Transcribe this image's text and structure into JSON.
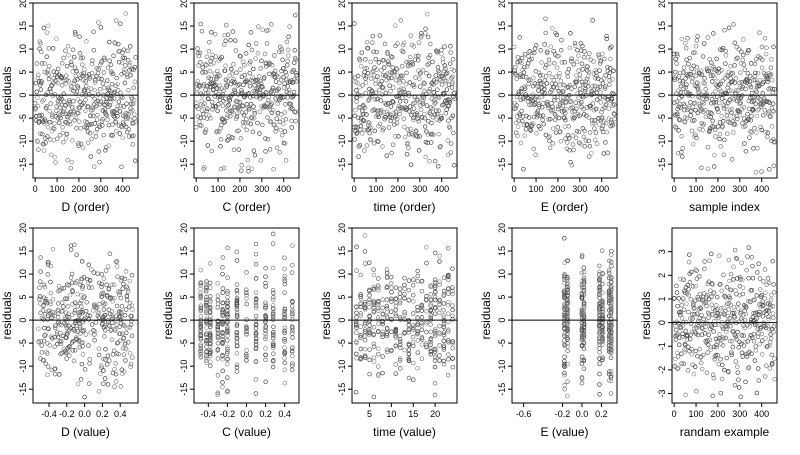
{
  "chart_data": [
    {
      "type": "scatter",
      "panel": "D-order",
      "xlabel": "D (order)",
      "ylabel": "residuals",
      "xlim": [
        -10,
        470
      ],
      "ylim": [
        -18,
        20
      ],
      "xticks": [
        0,
        100,
        200,
        300,
        400
      ],
      "yticks": [
        -15,
        -10,
        -5,
        0,
        5,
        10,
        15,
        20
      ],
      "refline": 0,
      "xkind": "order",
      "n": 460,
      "seed": 11
    },
    {
      "type": "scatter",
      "panel": "C-order",
      "xlabel": "C (order)",
      "ylabel": "residuals",
      "xlim": [
        -10,
        470
      ],
      "ylim": [
        -18,
        20
      ],
      "xticks": [
        0,
        100,
        200,
        300,
        400
      ],
      "yticks": [
        -15,
        -10,
        -5,
        0,
        5,
        10,
        15,
        20
      ],
      "refline": 0,
      "xkind": "order",
      "n": 460,
      "seed": 23
    },
    {
      "type": "scatter",
      "panel": "time-order",
      "xlabel": "time (order)",
      "ylabel": "residuals",
      "xlim": [
        -10,
        470
      ],
      "ylim": [
        -18,
        20
      ],
      "xticks": [
        0,
        100,
        200,
        300,
        400
      ],
      "yticks": [
        -15,
        -10,
        -5,
        0,
        5,
        10,
        15,
        20
      ],
      "refline": 0,
      "xkind": "order",
      "n": 460,
      "seed": 37
    },
    {
      "type": "scatter",
      "panel": "E-order",
      "xlabel": "E (order)",
      "ylabel": "residuals",
      "xlim": [
        -10,
        470
      ],
      "ylim": [
        -18,
        20
      ],
      "xticks": [
        0,
        100,
        200,
        300,
        400
      ],
      "yticks": [
        -15,
        -10,
        -5,
        0,
        5,
        10,
        15,
        20
      ],
      "refline": 0,
      "xkind": "order",
      "n": 460,
      "seed": 41
    },
    {
      "type": "scatter",
      "panel": "sample-index",
      "xlabel": "sample index",
      "ylabel": "residuals",
      "xlim": [
        -10,
        470
      ],
      "ylim": [
        -18,
        20
      ],
      "xticks": [
        0,
        100,
        200,
        300,
        400
      ],
      "yticks": [
        -15,
        -10,
        -5,
        0,
        5,
        10,
        15,
        20
      ],
      "refline": 0,
      "xkind": "order",
      "n": 460,
      "seed": 53
    },
    {
      "type": "scatter",
      "panel": "D-value",
      "xlabel": "D (value)",
      "ylabel": "residuals",
      "xlim": [
        -0.58,
        0.6
      ],
      "ylim": [
        -18,
        20
      ],
      "xticks": [
        -0.4,
        -0.2,
        0.0,
        0.2,
        0.4
      ],
      "xtick_labels": [
        "-0.4",
        "-0.2",
        "0.0",
        "0.2",
        "0.4"
      ],
      "yticks": [
        -15,
        -10,
        -5,
        0,
        5,
        10,
        15,
        20
      ],
      "refline": 0,
      "xkind": "continuous",
      "n": 420,
      "seed": 61
    },
    {
      "type": "scatter",
      "panel": "C-value",
      "xlabel": "C (value)",
      "ylabel": "residuals",
      "xlim": [
        -0.55,
        0.55
      ],
      "ylim": [
        -18,
        20
      ],
      "xticks": [
        -0.4,
        -0.2,
        0.0,
        0.2,
        0.4
      ],
      "xtick_labels": [
        "-0.4",
        "-0.2",
        "0.0",
        "0.2",
        "0.4"
      ],
      "yticks": [
        -15,
        -10,
        -5,
        0,
        5,
        10,
        15,
        20
      ],
      "refline": 0,
      "xkind": "discrete",
      "levels": [
        -0.48,
        -0.42,
        -0.38,
        -0.3,
        -0.25,
        -0.2,
        -0.1,
        0.0,
        0.1,
        0.2,
        0.28,
        0.4,
        0.48
      ],
      "n": 420,
      "seed": 73
    },
    {
      "type": "scatter",
      "panel": "time-value",
      "xlabel": "time (value)",
      "ylabel": "residuals",
      "xlim": [
        1,
        25
      ],
      "ylim": [
        -18,
        20
      ],
      "xticks": [
        5,
        10,
        15,
        20
      ],
      "xtick_labels": [
        "5",
        "10",
        "15",
        "20"
      ],
      "yticks": [
        -15,
        -10,
        -5,
        0,
        5,
        10,
        15,
        20
      ],
      "refline": 0,
      "xkind": "discrete",
      "levels": [
        2,
        3,
        4,
        5,
        6,
        7,
        8,
        9,
        10,
        11,
        12,
        13,
        14,
        15,
        16,
        17,
        18,
        19,
        20,
        21,
        22,
        23,
        24
      ],
      "n": 420,
      "seed": 83
    },
    {
      "type": "scatter",
      "panel": "E-value",
      "xlabel": "E (value)",
      "ylabel": "residuals",
      "xlim": [
        -0.72,
        0.36
      ],
      "ylim": [
        -18,
        20
      ],
      "xticks": [
        -0.6,
        -0.2,
        0.0,
        0.2
      ],
      "xtick_labels": [
        "-0.6",
        "-0.2",
        "0.0",
        "0.2"
      ],
      "yticks": [
        -15,
        -10,
        -5,
        0,
        5,
        10,
        15,
        20
      ],
      "refline": 0,
      "xkind": "clustered",
      "levels": [
        -0.18,
        -0.15,
        0.0,
        0.02,
        0.18,
        0.21,
        0.28,
        0.3
      ],
      "n": 420,
      "seed": 97
    },
    {
      "type": "scatter",
      "panel": "random-example",
      "xlabel": "randam example",
      "ylabel": "residuals",
      "xlim": [
        -10,
        470
      ],
      "ylim": [
        -3.4,
        4
      ],
      "xticks": [
        0,
        100,
        200,
        300,
        400
      ],
      "yticks": [
        -3,
        -2,
        -1,
        0,
        1,
        2,
        3
      ],
      "refline": 0,
      "xkind": "order",
      "n": 460,
      "seed": 109
    }
  ]
}
